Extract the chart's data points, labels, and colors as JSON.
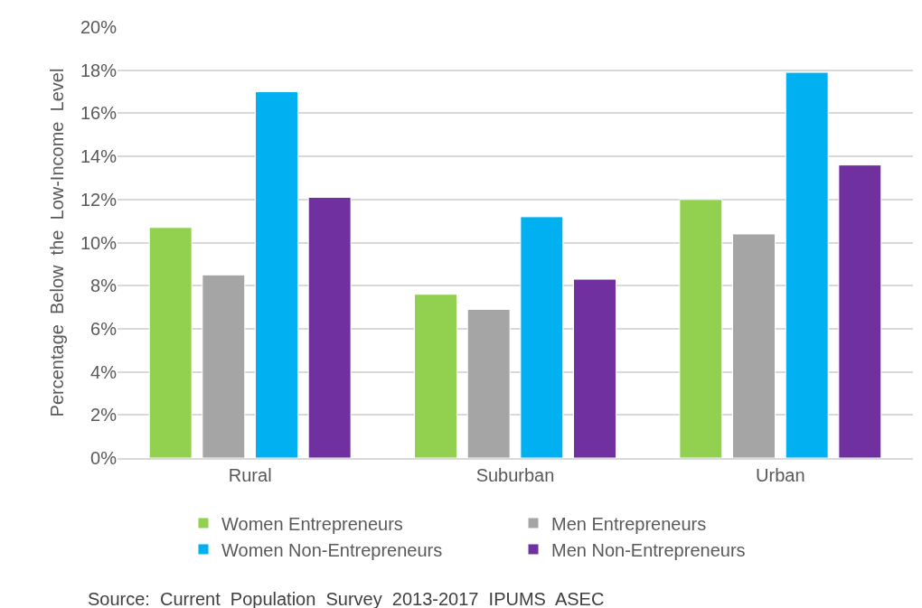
{
  "chart_data": {
    "type": "bar",
    "ylabel": "Percentage  Below  the  Low-Income  Level",
    "categories": [
      "Rural",
      "Suburban",
      "Urban"
    ],
    "series": [
      {
        "name": "Women Entrepreneurs",
        "color": "#92d050",
        "values": [
          10.7,
          7.6,
          12.0
        ]
      },
      {
        "name": "Men Entrepreneurs",
        "color": "#a5a5a5",
        "values": [
          8.5,
          6.9,
          10.4
        ]
      },
      {
        "name": "Women Non-Entrepreneurs",
        "color": "#00b0f0",
        "values": [
          17.0,
          11.2,
          17.9
        ]
      },
      {
        "name": "Men Non-Entrepreneurs",
        "color": "#7030a0",
        "values": [
          12.1,
          8.3,
          13.6
        ]
      }
    ],
    "ylim": [
      0,
      20
    ],
    "yticks": [
      {
        "value": 0,
        "label": "0%"
      },
      {
        "value": 2,
        "label": "2%"
      },
      {
        "value": 4,
        "label": "4%"
      },
      {
        "value": 6,
        "label": "6%"
      },
      {
        "value": 8,
        "label": "8%"
      },
      {
        "value": 10,
        "label": "10%"
      },
      {
        "value": 12,
        "label": "12%"
      },
      {
        "value": 14,
        "label": "14%"
      },
      {
        "value": 16,
        "label": "16%"
      },
      {
        "value": 18,
        "label": "18%"
      },
      {
        "value": 20,
        "label": "20%"
      }
    ],
    "grid": "y",
    "legend": "bottom",
    "annotations": [
      "Source:  Current  Population  Survey  2013-2017  IPUMS  ASEC"
    ]
  }
}
